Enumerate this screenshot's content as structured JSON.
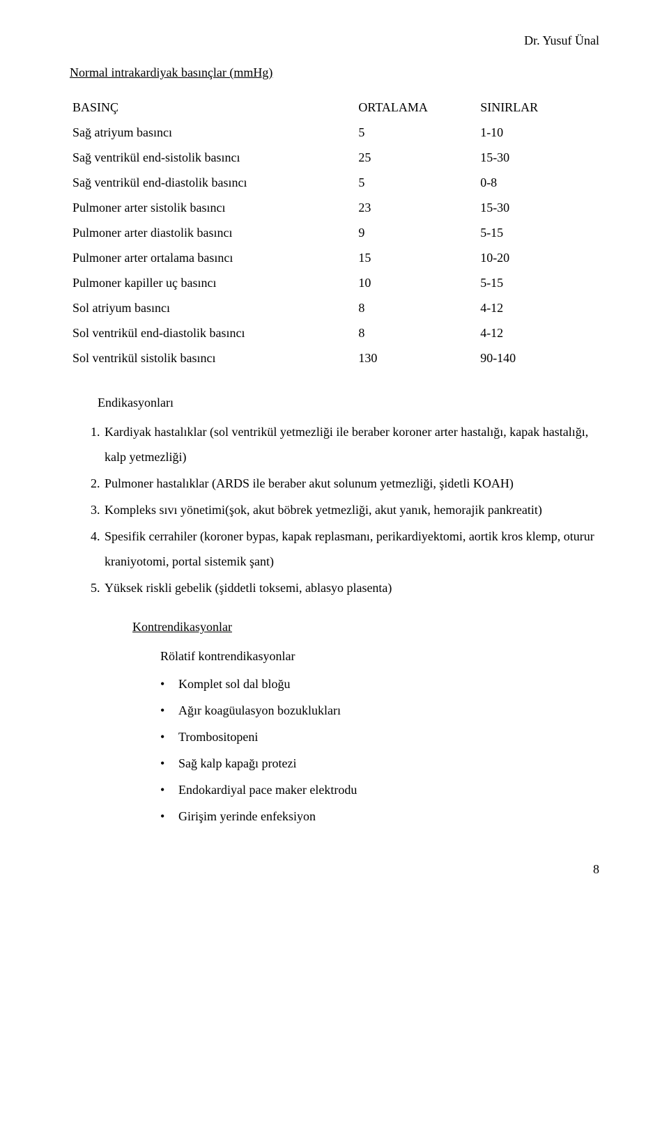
{
  "author": "Dr. Yusuf Ünal",
  "heading": "Normal intrakardiyak basınçlar (mmHg)",
  "table": {
    "headers": [
      "BASINÇ",
      "ORTALAMA",
      "SINIRLAR"
    ],
    "rows": [
      {
        "name": "Sağ atriyum basıncı",
        "avg": "5",
        "range": "1-10"
      },
      {
        "name": "Sağ ventrikül end-sistolik basıncı",
        "avg": "25",
        "range": "15-30"
      },
      {
        "name": "Sağ ventrikül end-diastolik basıncı",
        "avg": "5",
        "range": "0-8"
      },
      {
        "name": "Pulmoner arter sistolik basıncı",
        "avg": "23",
        "range": "15-30"
      },
      {
        "name": "Pulmoner arter diastolik basıncı",
        "avg": "9",
        "range": "5-15"
      },
      {
        "name": "Pulmoner arter ortalama basıncı",
        "avg": "15",
        "range": "10-20"
      },
      {
        "name": "Pulmoner kapiller uç basıncı",
        "avg": "10",
        "range": "5-15"
      },
      {
        "name": "Sol atriyum basıncı",
        "avg": "8",
        "range": "4-12"
      },
      {
        "name": "Sol ventrikül end-diastolik basıncı",
        "avg": "8",
        "range": "4-12"
      },
      {
        "name": "Sol ventrikül sistolik basıncı",
        "avg": "130",
        "range": "90-140"
      }
    ]
  },
  "indications_title": "Endikasyonları",
  "indications": [
    "Kardiyak hastalıklar (sol ventrikül yetmezliği ile beraber koroner arter hastalığı, kapak hastalığı, kalp yetmezliği)",
    "Pulmoner hastalıklar (ARDS ile beraber akut solunum yetmezliği, şidetli KOAH)",
    "Kompleks sıvı yönetimi(şok, akut böbrek yetmezliği, akut yanık, hemorajik pankreatit)",
    "Spesifik cerrahiler (koroner bypas, kapak replasmanı, perikardiyektomi, aortik kros klemp, oturur kraniyotomi, portal sistemik şant)",
    "Yüksek riskli gebelik (şiddetli toksemi, ablasyo plasenta)"
  ],
  "contra_title": "Kontrendikasyonlar",
  "relative_contra_title": "Rölatif kontrendikasyonlar",
  "relative_contras": [
    "Komplet sol dal bloğu",
    "Ağır koagüulasyon bozuklukları",
    "Trombositopeni",
    "Sağ kalp kapağı protezi",
    "Endokardiyal pace maker elektrodu",
    "Girişim yerinde enfeksiyon"
  ],
  "page_number": "8"
}
